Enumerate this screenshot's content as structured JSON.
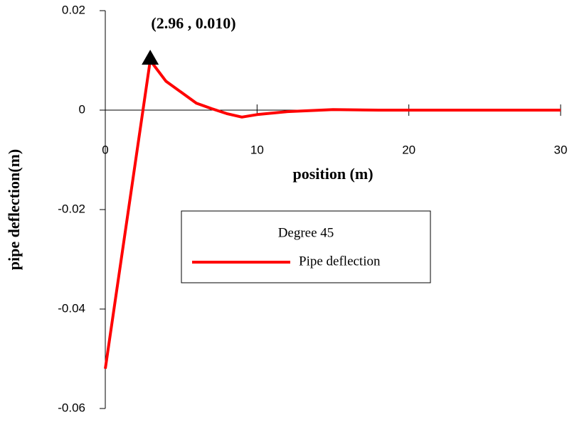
{
  "chart_data": {
    "type": "line",
    "x_label": "position (m)",
    "y_label": "pipe deflection(m)",
    "annotation": "(2.96 , 0.010)",
    "legend_title": "Degree 45",
    "x": [
      0,
      2.96,
      4,
      5,
      6,
      7,
      8,
      9,
      10,
      12,
      15,
      18,
      20,
      25,
      30
    ],
    "series": [
      {
        "name": "Pipe deflection",
        "color": "#ff0000",
        "values": [
          -0.052,
          0.01,
          0.0058,
          0.0036,
          0.0014,
          0.0003,
          -0.0007,
          -0.0014,
          -0.0009,
          -0.0003,
          0.0001,
          0,
          0,
          0,
          0
        ]
      }
    ],
    "xlim": [
      0,
      30
    ],
    "xticks": [
      0,
      10,
      20,
      30
    ],
    "ylim": [
      -0.06,
      0.02
    ],
    "yticks": [
      0.02,
      0,
      -0.02,
      -0.04,
      -0.06
    ]
  }
}
